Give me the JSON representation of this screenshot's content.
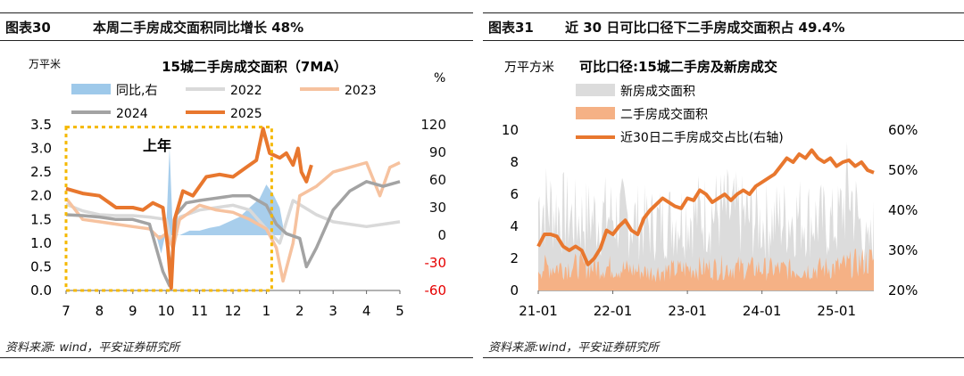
{
  "left": {
    "figure_label": "图表30",
    "header_title": "本周二手房成交面积同比增长 48%",
    "footer": "资料来源: wind，平安证券研究所"
  },
  "right": {
    "figure_label": "图表31",
    "header_title": "近 30 日可比口径下二手房成交面积占 49.4%",
    "footer": "资料来源:wind，平安证券研究所"
  },
  "chart_data": [
    {
      "type": "line",
      "title": "15城二手房成交面积（7MA）",
      "ylabel": "万平米",
      "y2label": "%",
      "ylim": [
        0,
        3.5
      ],
      "y2lim": [
        -60,
        120
      ],
      "yticks": [
        "0.0",
        "0.5",
        "1.0",
        "1.5",
        "2.0",
        "2.5",
        "3.0",
        "3.5"
      ],
      "y2ticks": [
        "-60",
        "-30",
        "0",
        "30",
        "60",
        "90",
        "120"
      ],
      "categories": [
        "7",
        "8",
        "9",
        "10",
        "11",
        "12",
        "1",
        "2",
        "3",
        "4",
        "5"
      ],
      "annotation": "上年",
      "legend_position": "top",
      "colors": {
        "yoy": "#9ec9ea",
        "2022": "#d9d9d9",
        "2023": "#f6c29f",
        "2024": "#a3a3a3",
        "2025": "#e8772e",
        "box": "#f5b800",
        "negative": "#e60000"
      },
      "series": [
        {
          "name": "同比,右",
          "type": "bar",
          "axis": "right",
          "values": [
            [
              0,
              0
            ],
            [
              0.3,
              0
            ],
            [
              0.6,
              0
            ],
            [
              0.9,
              0
            ],
            [
              1.2,
              0
            ],
            [
              1.5,
              0
            ],
            [
              1.8,
              0
            ],
            [
              2.1,
              0
            ],
            [
              2.4,
              0
            ],
            [
              2.7,
              0
            ],
            [
              2.85,
              -20
            ],
            [
              3.0,
              5
            ],
            [
              3.1,
              95
            ],
            [
              3.2,
              2
            ],
            [
              3.4,
              0
            ],
            [
              3.7,
              5
            ],
            [
              4.0,
              5
            ],
            [
              4.3,
              8
            ],
            [
              4.6,
              10
            ],
            [
              4.9,
              15
            ],
            [
              5.2,
              20
            ],
            [
              5.5,
              30
            ],
            [
              5.8,
              40
            ],
            [
              6.0,
              55
            ],
            [
              6.2,
              45
            ],
            [
              6.4,
              30
            ],
            [
              6.5,
              10
            ]
          ]
        },
        {
          "name": "2022",
          "axis": "left",
          "values": [
            [
              0,
              1.82
            ],
            [
              0.5,
              1.68
            ],
            [
              1,
              1.6
            ],
            [
              1.5,
              1.58
            ],
            [
              2,
              1.58
            ],
            [
              2.5,
              1.55
            ],
            [
              3,
              1.5
            ],
            [
              3.2,
              0.85
            ],
            [
              3.4,
              1.55
            ],
            [
              4,
              1.7
            ],
            [
              4.5,
              1.75
            ],
            [
              5,
              1.8
            ],
            [
              5.5,
              1.7
            ],
            [
              6,
              1.3
            ],
            [
              6.4,
              1.0
            ],
            [
              6.8,
              1.9
            ],
            [
              7.5,
              1.6
            ],
            [
              8,
              1.45
            ],
            [
              8.5,
              1.4
            ],
            [
              9,
              1.35
            ],
            [
              9.5,
              1.4
            ],
            [
              10,
              1.45
            ]
          ]
        },
        {
          "name": "2023",
          "axis": "left",
          "values": [
            [
              0,
              1.95
            ],
            [
              0.5,
              1.5
            ],
            [
              1,
              1.45
            ],
            [
              1.5,
              1.4
            ],
            [
              2,
              1.35
            ],
            [
              2.5,
              1.3
            ],
            [
              2.8,
              1.1
            ],
            [
              3,
              1.2
            ],
            [
              3.2,
              0.9
            ],
            [
              3.4,
              1.5
            ],
            [
              4,
              1.8
            ],
            [
              4.5,
              1.7
            ],
            [
              5,
              1.65
            ],
            [
              5.5,
              1.5
            ],
            [
              6,
              1.3
            ],
            [
              6.3,
              0.9
            ],
            [
              6.5,
              0.2
            ],
            [
              6.8,
              1.0
            ],
            [
              7,
              2.0
            ],
            [
              7.5,
              2.2
            ],
            [
              8,
              2.5
            ],
            [
              8.5,
              2.6
            ],
            [
              9,
              2.7
            ],
            [
              9.4,
              2.0
            ],
            [
              9.7,
              2.6
            ],
            [
              10,
              2.7
            ]
          ]
        },
        {
          "name": "2024",
          "axis": "left",
          "values": [
            [
              0,
              1.6
            ],
            [
              0.5,
              1.58
            ],
            [
              1,
              1.55
            ],
            [
              1.5,
              1.5
            ],
            [
              2,
              1.5
            ],
            [
              2.5,
              1.4
            ],
            [
              2.9,
              0.4
            ],
            [
              3.1,
              0.1
            ],
            [
              3.3,
              1.6
            ],
            [
              3.6,
              1.85
            ],
            [
              4,
              1.9
            ],
            [
              4.5,
              1.95
            ],
            [
              5,
              2.0
            ],
            [
              5.5,
              2.0
            ],
            [
              6,
              1.8
            ],
            [
              6.3,
              1.4
            ],
            [
              6.6,
              1.2
            ],
            [
              7,
              1.1
            ],
            [
              7.2,
              0.5
            ],
            [
              7.5,
              0.9
            ],
            [
              8,
              1.7
            ],
            [
              8.5,
              2.1
            ],
            [
              9,
              2.3
            ],
            [
              9.5,
              2.2
            ],
            [
              10,
              2.3
            ]
          ]
        },
        {
          "name": "2025",
          "axis": "left",
          "values": [
            [
              0,
              2.15
            ],
            [
              0.5,
              2.05
            ],
            [
              1,
              2.0
            ],
            [
              1.5,
              1.75
            ],
            [
              2,
              1.75
            ],
            [
              2.3,
              1.7
            ],
            [
              2.6,
              1.85
            ],
            [
              2.9,
              1.75
            ],
            [
              3.05,
              0.9
            ],
            [
              3.15,
              0.05
            ],
            [
              3.25,
              1.5
            ],
            [
              3.5,
              2.1
            ],
            [
              3.8,
              2.0
            ],
            [
              4.2,
              2.4
            ],
            [
              4.6,
              2.45
            ],
            [
              5,
              2.4
            ],
            [
              5.4,
              2.6
            ],
            [
              5.7,
              2.75
            ],
            [
              5.9,
              3.42
            ],
            [
              6.1,
              2.9
            ],
            [
              6.4,
              2.8
            ],
            [
              6.6,
              2.9
            ],
            [
              6.8,
              2.65
            ],
            [
              6.95,
              3.0
            ],
            [
              7.05,
              2.5
            ],
            [
              7.2,
              2.3
            ],
            [
              7.35,
              2.65
            ]
          ]
        }
      ]
    },
    {
      "type": "area",
      "title": "可比口径:15城二手房及新房成交",
      "ylabel": "万平方米",
      "ylim": [
        0,
        10
      ],
      "y2lim": [
        20,
        60
      ],
      "yticks": [
        "0",
        "2",
        "4",
        "6",
        "8",
        "10"
      ],
      "y2ticks": [
        "20%",
        "30%",
        "40%",
        "50%",
        "60%"
      ],
      "categories": [
        "21-01",
        "22-01",
        "23-01",
        "24-01",
        "25-01"
      ],
      "legend_position": "top-left",
      "colors": {
        "new": "#dcdcdc",
        "second": "#f5b185",
        "share": "#e8772e"
      },
      "series": [
        {
          "name": "新房成交面积",
          "axis": "left",
          "envelope": [
            [
              0,
              6.5
            ],
            [
              6,
              5.2
            ],
            [
              12,
              5.5
            ],
            [
              18,
              4.8
            ],
            [
              24,
              5.5
            ],
            [
              30,
              5.8
            ],
            [
              36,
              5.0
            ],
            [
              42,
              5.5
            ],
            [
              48,
              4.8
            ],
            [
              50,
              7.5
            ],
            [
              53,
              3.0
            ],
            [
              54,
              4.5
            ]
          ]
        },
        {
          "name": "二手房成交面积",
          "axis": "left",
          "envelope": [
            [
              0,
              1.8
            ],
            [
              6,
              1.9
            ],
            [
              12,
              1.8
            ],
            [
              18,
              1.4
            ],
            [
              24,
              1.7
            ],
            [
              30,
              1.8
            ],
            [
              36,
              1.7
            ],
            [
              42,
              1.6
            ],
            [
              48,
              1.8
            ],
            [
              54,
              2.4
            ]
          ]
        },
        {
          "name": "近30日二手房成交占比(右轴)",
          "axis": "right",
          "values": [
            [
              0,
              31
            ],
            [
              1,
              34
            ],
            [
              2,
              34
            ],
            [
              3,
              33.5
            ],
            [
              4,
              31
            ],
            [
              5,
              30
            ],
            [
              6,
              31
            ],
            [
              7,
              30
            ],
            [
              8,
              26.5
            ],
            [
              9,
              28
            ],
            [
              10,
              30.5
            ],
            [
              11,
              35
            ],
            [
              12,
              34
            ],
            [
              13,
              36
            ],
            [
              14,
              37.5
            ],
            [
              15,
              35
            ],
            [
              16,
              34
            ],
            [
              17,
              38
            ],
            [
              18,
              40
            ],
            [
              19,
              41.5
            ],
            [
              20,
              43
            ],
            [
              21,
              42
            ],
            [
              22,
              41
            ],
            [
              23,
              40.5
            ],
            [
              24,
              43
            ],
            [
              25,
              42.5
            ],
            [
              26,
              45
            ],
            [
              27,
              44
            ],
            [
              28,
              42
            ],
            [
              29,
              43
            ],
            [
              30,
              44
            ],
            [
              31,
              42.5
            ],
            [
              32,
              44
            ],
            [
              33,
              45
            ],
            [
              34,
              44
            ],
            [
              35,
              46
            ],
            [
              36,
              47
            ],
            [
              37,
              48
            ],
            [
              38,
              49
            ],
            [
              39,
              51
            ],
            [
              40,
              53
            ],
            [
              41,
              52
            ],
            [
              42,
              54
            ],
            [
              43,
              53
            ],
            [
              44,
              55
            ],
            [
              45,
              53
            ],
            [
              46,
              52
            ],
            [
              47,
              53
            ],
            [
              48,
              51
            ],
            [
              49,
              52
            ],
            [
              50,
              52.5
            ],
            [
              51,
              51
            ],
            [
              52,
              52
            ],
            [
              53,
              50
            ],
            [
              54,
              49.4
            ]
          ]
        }
      ]
    }
  ]
}
